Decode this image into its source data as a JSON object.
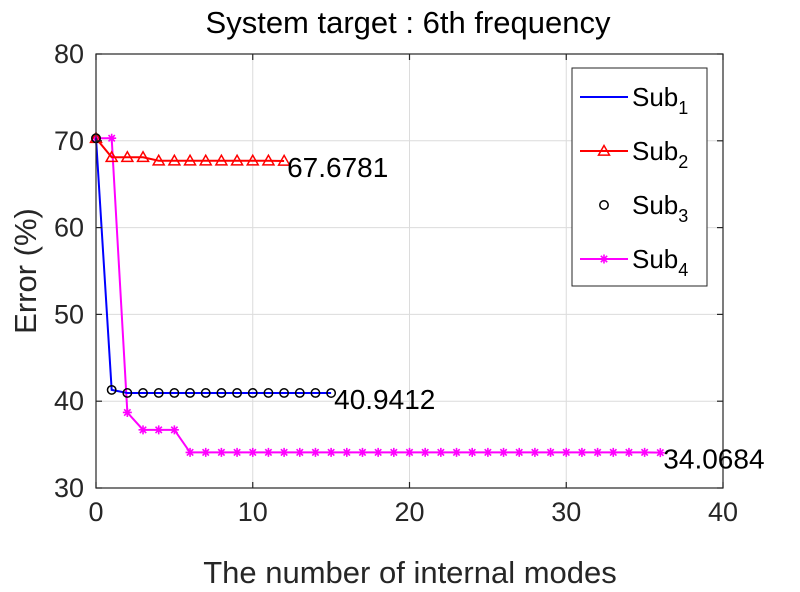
{
  "chart_data": {
    "type": "line",
    "title": "System target : 6th frequency",
    "xlabel": "The number of internal modes",
    "ylabel": "Error (%)",
    "xlim": [
      0,
      40
    ],
    "ylim": [
      30,
      80
    ],
    "xticks": [
      0,
      10,
      20,
      30,
      40
    ],
    "yticks": [
      30,
      40,
      50,
      60,
      70,
      80
    ],
    "grid": true,
    "legend_position": "top-right",
    "series": [
      {
        "name": "Sub",
        "subscript": "1",
        "color": "#0000ff",
        "marker": "none",
        "x": [
          0,
          1,
          2,
          3,
          4,
          5,
          6,
          7,
          8,
          9,
          10,
          11,
          12,
          13,
          14,
          15
        ],
        "y": [
          70.3,
          41.3,
          40.95,
          40.95,
          40.95,
          40.95,
          40.95,
          40.95,
          40.95,
          40.95,
          40.95,
          40.95,
          40.95,
          40.95,
          40.95,
          40.94
        ]
      },
      {
        "name": "Sub",
        "subscript": "2",
        "color": "#ff0000",
        "marker": "triangle",
        "x": [
          0,
          1,
          2,
          3,
          4,
          5,
          6,
          7,
          8,
          9,
          10,
          11,
          12
        ],
        "y": [
          70.3,
          68.1,
          68.1,
          68.1,
          67.7,
          67.7,
          67.7,
          67.7,
          67.7,
          67.7,
          67.7,
          67.7,
          67.68
        ]
      },
      {
        "name": "Sub",
        "subscript": "3",
        "color": "#000000",
        "marker": "circle",
        "x": [
          0,
          1,
          2,
          3,
          4,
          5,
          6,
          7,
          8,
          9,
          10,
          11,
          12,
          13,
          14,
          15
        ],
        "y": [
          70.3,
          41.3,
          40.95,
          40.95,
          40.95,
          40.95,
          40.95,
          40.95,
          40.95,
          40.95,
          40.95,
          40.95,
          40.95,
          40.95,
          40.95,
          40.94
        ]
      },
      {
        "name": "Sub",
        "subscript": "4",
        "color": "#ff00ff",
        "marker": "star",
        "x": [
          0,
          1,
          2,
          3,
          4,
          5,
          6,
          7,
          8,
          9,
          10,
          11,
          12,
          13,
          14,
          15,
          16,
          17,
          18,
          19,
          20,
          21,
          22,
          23,
          24,
          25,
          26,
          27,
          28,
          29,
          30,
          31,
          32,
          33,
          34,
          35,
          36
        ],
        "y": [
          70.3,
          70.3,
          38.7,
          36.7,
          36.7,
          36.7,
          34.1,
          34.1,
          34.1,
          34.1,
          34.1,
          34.1,
          34.1,
          34.1,
          34.1,
          34.1,
          34.1,
          34.1,
          34.1,
          34.1,
          34.1,
          34.1,
          34.1,
          34.1,
          34.1,
          34.1,
          34.1,
          34.1,
          34.1,
          34.1,
          34.1,
          34.1,
          34.1,
          34.1,
          34.1,
          34.1,
          34.07
        ]
      }
    ],
    "annotations": [
      {
        "text": "67.6781",
        "x": 12,
        "y": 67.68
      },
      {
        "text": "40.9412",
        "x": 15,
        "y": 40.94
      },
      {
        "text": "34.0684",
        "x": 36,
        "y": 34.07
      }
    ]
  }
}
